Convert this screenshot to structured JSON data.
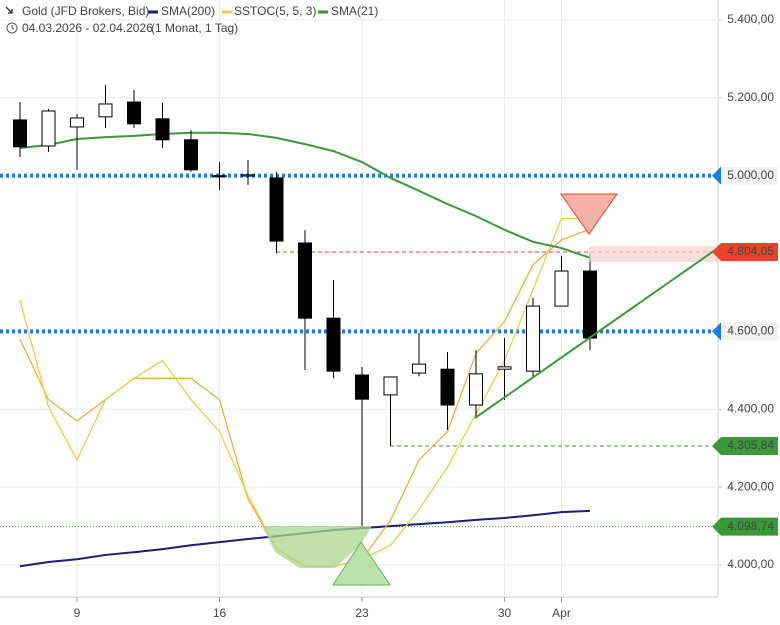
{
  "chart_data": {
    "type": "candlestick",
    "title": "Gold (JFD Brokers, Bid)",
    "subtitle": "04.03.2026 - 02.04.2026",
    "subtitle_note": "(1 Monat, 1 Tag)",
    "categories": [
      null,
      null,
      "9",
      null,
      null,
      null,
      null,
      "16",
      null,
      null,
      null,
      null,
      "23",
      null,
      null,
      null,
      null,
      "30",
      null,
      "Apr",
      null
    ],
    "open": [
      5143,
      5076,
      5125,
      5151,
      5189,
      5146,
      5092,
      5000,
      4999,
      4994,
      4827,
      4634,
      4488,
      4437,
      4493,
      4503,
      4411,
      4503,
      4498,
      4665,
      4755
    ],
    "high": [
      5189,
      5171,
      5158,
      5233,
      5220,
      5187,
      5117,
      5035,
      5040,
      5010,
      4860,
      4732,
      4509,
      4483,
      4596,
      4547,
      4552,
      4583,
      4686,
      4794,
      4801
    ],
    "low": [
      5048,
      5061,
      5015,
      5122,
      5122,
      5071,
      5010,
      4963,
      4976,
      4801,
      4501,
      4480,
      4098.74,
      4305.84,
      4485,
      4347,
      4378,
      4424,
      4480,
      4665,
      4552
    ],
    "close": [
      5074,
      5166,
      5148,
      5184,
      5133,
      5092,
      5015,
      4997,
      5002,
      4832,
      4634,
      4498,
      4426,
      4483,
      4516,
      4411,
      4491,
      4509,
      4665,
      4755,
      4583
    ],
    "up_color": "#ffffff",
    "down_color": "#000000",
    "series": [
      {
        "name": "SMA(200)",
        "color": "#1d1d7a",
        "values": [
          3997,
          4008,
          4015,
          4026,
          4033,
          4041,
          4051,
          4059,
          4067,
          4074,
          4082,
          4090,
          4095,
          4100,
          4105,
          4110,
          4116,
          4121,
          4128,
          4136,
          4139
        ]
      },
      {
        "name": "SSTOC(5, 5, 3)",
        "color": "#f7c948",
        "axis": "y2",
        "values": [
          76,
          46,
          31,
          48,
          54,
          59,
          48,
          39,
          21,
          6,
          1,
          1,
          3,
          7,
          17,
          29,
          44,
          59,
          79,
          99,
          99
        ],
        "signal": [
          65,
          48,
          42,
          48,
          54,
          54,
          54,
          48,
          20,
          6,
          1,
          1,
          3,
          14,
          31,
          39,
          61,
          70,
          86,
          93,
          96
        ],
        "signal_color": "#f0ad3c"
      },
      {
        "name": "SMA(21)",
        "color": "#3a9a3a",
        "values": [
          5071,
          5079,
          5094,
          5099,
          5102,
          5107,
          5110,
          5110,
          5107,
          5097,
          5081,
          5063,
          5035,
          4994,
          4961,
          4927,
          4896,
          4861,
          4830,
          4814,
          4789
        ]
      }
    ],
    "ylim": [
      3918,
      5451
    ],
    "y2lim": [
      0,
      100
    ],
    "yticks": [
      {
        "value": 4000,
        "label": "4.000,00"
      },
      {
        "value": 4200,
        "label": "4.200,00"
      },
      {
        "value": 4400,
        "label": "4.400,00"
      },
      {
        "value": 5200,
        "label": "5.200,00"
      },
      {
        "value": 5400,
        "label": "5.400,00"
      }
    ],
    "grid": true,
    "levels": [
      {
        "value": 5000,
        "label": "5.000,00",
        "color": "#1e7be0",
        "filled": false,
        "dotted": true
      },
      {
        "value": 4804.05,
        "label": "4.804,05",
        "color": "#e8412c",
        "filled": true,
        "dotted": false
      },
      {
        "value": 4600,
        "label": "4.600,00",
        "color": "#1e7be0",
        "filled": false,
        "dotted": true
      },
      {
        "value": 4305.84,
        "label": "4.305,84",
        "color": "#3a9a3a",
        "filled": true,
        "dotted": false
      },
      {
        "value": 4098.74,
        "label": "4.098,74",
        "color": "#3a9a3a",
        "filled": true,
        "dotted": false
      }
    ]
  }
}
